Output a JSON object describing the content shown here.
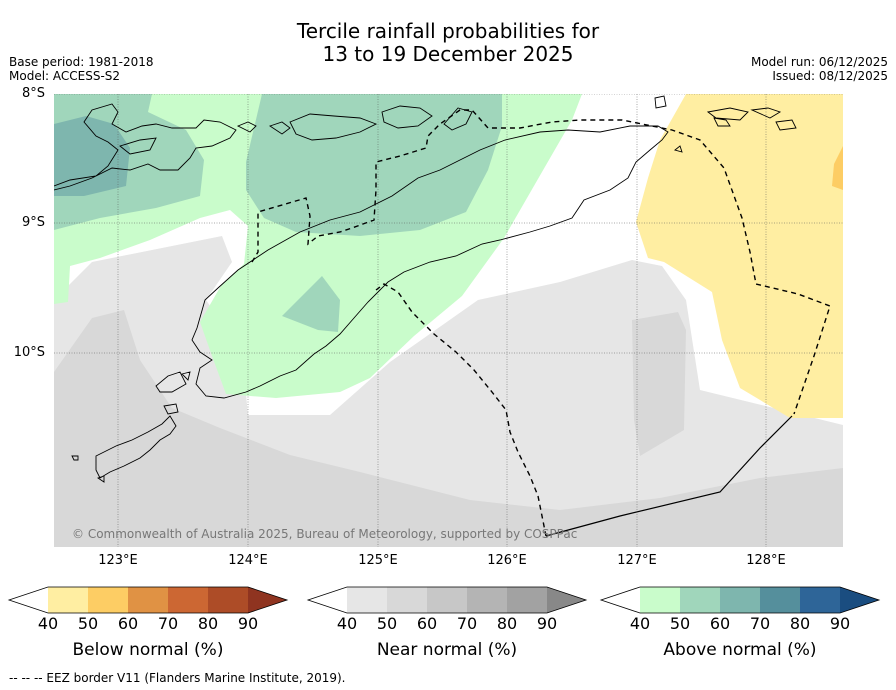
{
  "header": {
    "title_line1": "Tercile rainfall probabilities for",
    "title_line2": "13 to 19 December 2025",
    "base_period": "Base period: 1981-2018",
    "model": "Model: ACCESS-S2",
    "model_run": "Model run: 06/12/2025",
    "issued": "Issued: 08/12/2025"
  },
  "map": {
    "lat_labels": [
      "8°S",
      "9°S",
      "10°S"
    ],
    "lon_labels": [
      "123°E",
      "124°E",
      "125°E",
      "126°E",
      "127°E",
      "128°E"
    ],
    "copyright": "© Commonwealth of Australia 2025, Bureau of Meteorology, supported by COSPPac"
  },
  "legends": [
    {
      "label": "Below normal (%)",
      "ticks": [
        "40",
        "50",
        "60",
        "70",
        "80",
        "90"
      ],
      "colors": [
        "#ffffff",
        "#ffeea2",
        "#fdcd64",
        "#e09244",
        "#cc6733",
        "#ad4c27",
        "#8f3420"
      ]
    },
    {
      "label": "Near normal (%)",
      "ticks": [
        "40",
        "50",
        "60",
        "70",
        "80",
        "90"
      ],
      "colors": [
        "#ffffff",
        "#e6e6e6",
        "#d8d8d8",
        "#c7c7c7",
        "#b4b4b4",
        "#a2a2a2",
        "#888888"
      ]
    },
    {
      "label": "Above normal (%)",
      "ticks": [
        "40",
        "50",
        "60",
        "70",
        "80",
        "90"
      ],
      "colors": [
        "#ffffff",
        "#c9fccb",
        "#a0d6bb",
        "#7eb6ae",
        "#558f9c",
        "#2e6598",
        "#1a4d80"
      ]
    }
  ],
  "footer": {
    "eez_note": "-- -- -- EEZ border V11 (Flanders Marine Institute, 2019)."
  }
}
